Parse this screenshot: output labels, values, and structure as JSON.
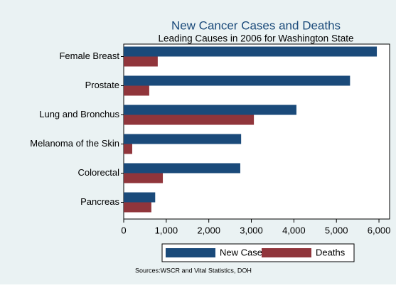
{
  "chart_data": {
    "type": "hbar",
    "title": "New Cancer Cases and Deaths",
    "subtitle": "Leading Causes in 2006 for Washington State",
    "source": "Sources:WSCR and Vital Statistics, DOH",
    "categories": [
      "Female Breast",
      "Prostate",
      "Lung and Bronchus",
      "Melanoma of the Skin",
      "Colorectal",
      "Pancreas"
    ],
    "series": [
      {
        "name": "New Cases",
        "color": "#1a4a7a",
        "values": [
          5950,
          5320,
          4060,
          2760,
          2740,
          740
        ]
      },
      {
        "name": "Deaths",
        "color": "#90353b",
        "values": [
          800,
          600,
          3060,
          200,
          920,
          650
        ]
      }
    ],
    "xlim": [
      0,
      6250
    ],
    "xticks": [
      0,
      {
        "value": 1000,
        "label": "1,000"
      },
      {
        "value": 2000,
        "label": "2,000"
      },
      {
        "value": 3000,
        "label": "3,000"
      },
      {
        "value": 4000,
        "label": "4,000"
      },
      {
        "value": 5000,
        "label": "5,000"
      },
      {
        "value": 6000,
        "label": "6,000"
      }
    ],
    "legend": "bottom"
  }
}
